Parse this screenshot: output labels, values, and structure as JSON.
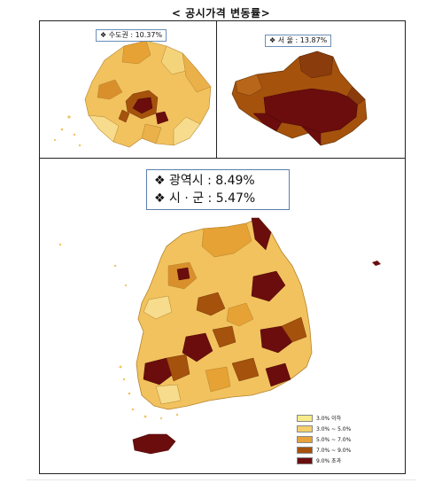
{
  "title": "< 공시가격 변동률>",
  "capital_label": "❖ 수도권 : 10.37%",
  "seoul_label": "❖ 서 울 : 13.87%",
  "metro_label": "❖ 광역시 : 8.49%",
  "citygun_label": "❖ 시 · 군 : 5.47%",
  "legend": [
    {
      "label": "3.0% 이하",
      "color": "#f7ec8a"
    },
    {
      "label": "3.0% ~ 5.0%",
      "color": "#f4cf6b"
    },
    {
      "label": "5.0% ~ 7.0%",
      "color": "#e7a23a"
    },
    {
      "label": "7.0% ~ 9.0%",
      "color": "#a5520d"
    },
    {
      "label": "9.0% 초과",
      "color": "#6b0d0d"
    }
  ]
}
